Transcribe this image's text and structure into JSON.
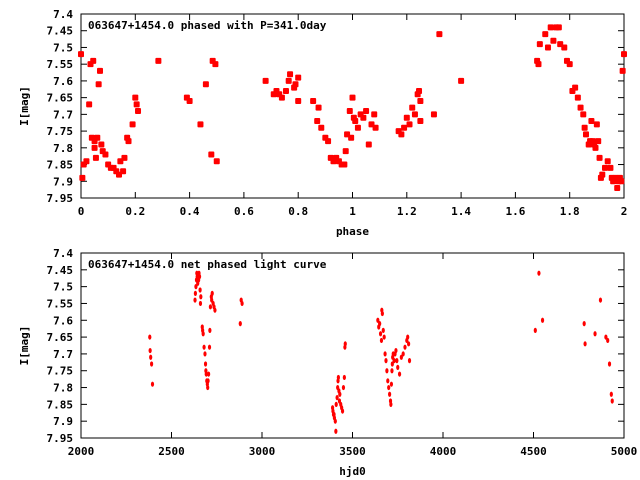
{
  "chart_data": [
    {
      "type": "scatter",
      "title": "063647+1454.0 phased with P=341.0day",
      "xlabel": "phase",
      "ylabel": "I[mag]",
      "xlim": [
        0,
        2
      ],
      "ylim": [
        7.95,
        7.4
      ],
      "y_inverted": true,
      "grid": false,
      "marker_color": "#ff0000",
      "xticks": [
        0,
        0.2,
        0.4,
        0.6,
        0.8,
        1,
        1.2,
        1.4,
        1.6,
        1.8,
        2
      ],
      "xtick_labels": [
        "0",
        "0.2",
        "0.4",
        "0.6",
        "0.8",
        "1",
        "1.2",
        "1.4",
        "1.6",
        "1.8",
        "2"
      ],
      "yticks": [
        7.4,
        7.45,
        7.5,
        7.55,
        7.6,
        7.65,
        7.7,
        7.75,
        7.8,
        7.85,
        7.9,
        7.95
      ],
      "ytick_labels": [
        "7.4",
        "7.45",
        "7.5",
        "7.55",
        "7.6",
        "7.65",
        "7.7",
        "7.75",
        "7.8",
        "7.85",
        "7.9",
        "7.95"
      ],
      "points": [
        [
          0.0,
          7.52
        ],
        [
          0.005,
          7.89
        ],
        [
          0.01,
          7.85
        ],
        [
          0.02,
          7.84
        ],
        [
          0.03,
          7.67
        ],
        [
          0.035,
          7.55
        ],
        [
          0.04,
          7.77
        ],
        [
          0.045,
          7.54
        ],
        [
          0.05,
          7.78
        ],
        [
          0.05,
          7.8
        ],
        [
          0.055,
          7.83
        ],
        [
          0.06,
          7.77
        ],
        [
          0.065,
          7.61
        ],
        [
          0.07,
          7.57
        ],
        [
          0.075,
          7.79
        ],
        [
          0.08,
          7.81
        ],
        [
          0.09,
          7.82
        ],
        [
          0.1,
          7.85
        ],
        [
          0.11,
          7.86
        ],
        [
          0.12,
          7.86
        ],
        [
          0.13,
          7.87
        ],
        [
          0.14,
          7.88
        ],
        [
          0.145,
          7.84
        ],
        [
          0.155,
          7.87
        ],
        [
          0.16,
          7.83
        ],
        [
          0.17,
          7.77
        ],
        [
          0.175,
          7.78
        ],
        [
          0.19,
          7.73
        ],
        [
          0.2,
          7.65
        ],
        [
          0.205,
          7.67
        ],
        [
          0.21,
          7.69
        ],
        [
          0.285,
          7.54
        ],
        [
          0.39,
          7.65
        ],
        [
          0.4,
          7.66
        ],
        [
          0.44,
          7.73
        ],
        [
          0.46,
          7.61
        ],
        [
          0.48,
          7.82
        ],
        [
          0.485,
          7.54
        ],
        [
          0.495,
          7.55
        ],
        [
          0.5,
          7.84
        ],
        [
          0.68,
          7.6
        ],
        [
          0.71,
          7.64
        ],
        [
          0.72,
          7.63
        ],
        [
          0.73,
          7.64
        ],
        [
          0.74,
          7.65
        ],
        [
          0.755,
          7.63
        ],
        [
          0.765,
          7.6
        ],
        [
          0.77,
          7.58
        ],
        [
          0.785,
          7.62
        ],
        [
          0.79,
          7.61
        ],
        [
          0.8,
          7.59
        ],
        [
          0.8,
          7.66
        ],
        [
          0.855,
          7.66
        ],
        [
          0.87,
          7.72
        ],
        [
          0.875,
          7.68
        ],
        [
          0.885,
          7.74
        ],
        [
          0.9,
          7.77
        ],
        [
          0.91,
          7.78
        ],
        [
          0.92,
          7.83
        ],
        [
          0.93,
          7.84
        ],
        [
          0.94,
          7.83
        ],
        [
          0.95,
          7.84
        ],
        [
          0.96,
          7.85
        ],
        [
          0.97,
          7.85
        ],
        [
          0.975,
          7.81
        ],
        [
          0.98,
          7.76
        ],
        [
          0.99,
          7.69
        ],
        [
          0.995,
          7.77
        ],
        [
          1.0,
          7.65
        ],
        [
          1.005,
          7.71
        ],
        [
          1.01,
          7.72
        ],
        [
          1.02,
          7.74
        ],
        [
          1.03,
          7.7
        ],
        [
          1.04,
          7.71
        ],
        [
          1.05,
          7.69
        ],
        [
          1.06,
          7.79
        ],
        [
          1.07,
          7.73
        ],
        [
          1.08,
          7.7
        ],
        [
          1.085,
          7.74
        ],
        [
          1.17,
          7.75
        ],
        [
          1.18,
          7.76
        ],
        [
          1.19,
          7.74
        ],
        [
          1.2,
          7.71
        ],
        [
          1.21,
          7.73
        ],
        [
          1.22,
          7.68
        ],
        [
          1.23,
          7.7
        ],
        [
          1.24,
          7.64
        ],
        [
          1.245,
          7.63
        ],
        [
          1.25,
          7.66
        ],
        [
          1.25,
          7.72
        ],
        [
          1.3,
          7.7
        ],
        [
          1.32,
          7.46
        ],
        [
          1.4,
          7.6
        ],
        [
          1.68,
          7.54
        ],
        [
          1.685,
          7.55
        ],
        [
          1.69,
          7.49
        ],
        [
          1.71,
          7.46
        ],
        [
          1.72,
          7.5
        ],
        [
          1.73,
          7.44
        ],
        [
          1.74,
          7.48
        ],
        [
          1.75,
          7.44
        ],
        [
          1.76,
          7.44
        ],
        [
          1.765,
          7.49
        ],
        [
          1.78,
          7.5
        ],
        [
          1.79,
          7.54
        ],
        [
          1.8,
          7.55
        ],
        [
          1.81,
          7.63
        ],
        [
          1.82,
          7.62
        ],
        [
          1.83,
          7.65
        ],
        [
          1.84,
          7.68
        ],
        [
          1.85,
          7.7
        ],
        [
          1.855,
          7.74
        ],
        [
          1.86,
          7.76
        ],
        [
          1.87,
          7.79
        ],
        [
          1.875,
          7.78
        ],
        [
          1.88,
          7.72
        ],
        [
          1.885,
          7.78
        ],
        [
          1.89,
          7.79
        ],
        [
          1.895,
          7.8
        ],
        [
          1.9,
          7.73
        ],
        [
          1.905,
          7.78
        ],
        [
          1.91,
          7.83
        ],
        [
          1.915,
          7.89
        ],
        [
          1.92,
          7.88
        ],
        [
          1.93,
          7.86
        ],
        [
          1.94,
          7.84
        ],
        [
          1.95,
          7.86
        ],
        [
          1.955,
          7.89
        ],
        [
          1.96,
          7.9
        ],
        [
          1.97,
          7.89
        ],
        [
          1.975,
          7.92
        ],
        [
          1.98,
          7.9
        ],
        [
          1.985,
          7.89
        ],
        [
          1.99,
          7.9
        ],
        [
          1.995,
          7.57
        ],
        [
          2.0,
          7.52
        ]
      ]
    },
    {
      "type": "scatter",
      "title": "063647+1454.0 net phased light curve",
      "xlabel": "hjd0",
      "ylabel": "I[mag]",
      "xlim": [
        2000,
        5000
      ],
      "ylim": [
        7.95,
        7.4
      ],
      "y_inverted": true,
      "grid": false,
      "marker_color": "#ff0000",
      "xticks": [
        2000,
        2500,
        3000,
        3500,
        4000,
        4500,
        5000
      ],
      "xtick_labels": [
        "2000",
        "2500",
        "3000",
        "3500",
        "4000",
        "4500",
        "5000"
      ],
      "yticks": [
        7.4,
        7.45,
        7.5,
        7.55,
        7.6,
        7.65,
        7.7,
        7.75,
        7.8,
        7.85,
        7.9,
        7.95
      ],
      "ytick_labels": [
        "7.4",
        "7.45",
        "7.5",
        "7.55",
        "7.6",
        "7.65",
        "7.7",
        "7.75",
        "7.8",
        "7.85",
        "7.9",
        "7.95"
      ],
      "points": [
        [
          2380,
          7.65
        ],
        [
          2382,
          7.69
        ],
        [
          2385,
          7.71
        ],
        [
          2390,
          7.73
        ],
        [
          2395,
          7.79
        ],
        [
          2630,
          7.54
        ],
        [
          2632,
          7.52
        ],
        [
          2635,
          7.5
        ],
        [
          2638,
          7.48
        ],
        [
          2640,
          7.46
        ],
        [
          2642,
          7.47
        ],
        [
          2645,
          7.49
        ],
        [
          2650,
          7.48
        ],
        [
          2652,
          7.46
        ],
        [
          2655,
          7.47
        ],
        [
          2658,
          7.51
        ],
        [
          2660,
          7.55
        ],
        [
          2662,
          7.53
        ],
        [
          2670,
          7.62
        ],
        [
          2672,
          7.63
        ],
        [
          2675,
          7.64
        ],
        [
          2680,
          7.68
        ],
        [
          2685,
          7.7
        ],
        [
          2688,
          7.73
        ],
        [
          2690,
          7.75
        ],
        [
          2692,
          7.76
        ],
        [
          2695,
          7.78
        ],
        [
          2698,
          7.79
        ],
        [
          2700,
          7.8
        ],
        [
          2702,
          7.78
        ],
        [
          2705,
          7.76
        ],
        [
          2710,
          7.68
        ],
        [
          2712,
          7.63
        ],
        [
          2715,
          7.56
        ],
        [
          2720,
          7.53
        ],
        [
          2722,
          7.54
        ],
        [
          2725,
          7.52
        ],
        [
          2730,
          7.55
        ],
        [
          2735,
          7.56
        ],
        [
          2740,
          7.57
        ],
        [
          2880,
          7.61
        ],
        [
          2885,
          7.54
        ],
        [
          2890,
          7.55
        ],
        [
          3390,
          7.86
        ],
        [
          3392,
          7.87
        ],
        [
          3395,
          7.88
        ],
        [
          3398,
          7.88
        ],
        [
          3400,
          7.89
        ],
        [
          3405,
          7.9
        ],
        [
          3408,
          7.93
        ],
        [
          3410,
          7.85
        ],
        [
          3415,
          7.83
        ],
        [
          3418,
          7.8
        ],
        [
          3420,
          7.78
        ],
        [
          3422,
          7.77
        ],
        [
          3425,
          7.81
        ],
        [
          3428,
          7.84
        ],
        [
          3430,
          7.82
        ],
        [
          3435,
          7.85
        ],
        [
          3440,
          7.86
        ],
        [
          3445,
          7.87
        ],
        [
          3450,
          7.8
        ],
        [
          3455,
          7.77
        ],
        [
          3458,
          7.68
        ],
        [
          3460,
          7.67
        ],
        [
          3640,
          7.6
        ],
        [
          3645,
          7.62
        ],
        [
          3650,
          7.61
        ],
        [
          3655,
          7.64
        ],
        [
          3660,
          7.66
        ],
        [
          3662,
          7.57
        ],
        [
          3665,
          7.58
        ],
        [
          3670,
          7.63
        ],
        [
          3675,
          7.65
        ],
        [
          3680,
          7.7
        ],
        [
          3685,
          7.72
        ],
        [
          3690,
          7.75
        ],
        [
          3695,
          7.78
        ],
        [
          3700,
          7.8
        ],
        [
          3705,
          7.82
        ],
        [
          3710,
          7.84
        ],
        [
          3712,
          7.85
        ],
        [
          3715,
          7.79
        ],
        [
          3718,
          7.75
        ],
        [
          3720,
          7.73
        ],
        [
          3722,
          7.71
        ],
        [
          3725,
          7.7
        ],
        [
          3730,
          7.72
        ],
        [
          3735,
          7.7
        ],
        [
          3740,
          7.69
        ],
        [
          3745,
          7.72
        ],
        [
          3750,
          7.74
        ],
        [
          3760,
          7.76
        ],
        [
          3770,
          7.71
        ],
        [
          3780,
          7.7
        ],
        [
          3790,
          7.68
        ],
        [
          3800,
          7.66
        ],
        [
          3805,
          7.65
        ],
        [
          3810,
          7.67
        ],
        [
          3815,
          7.72
        ],
        [
          4510,
          7.63
        ],
        [
          4530,
          7.46
        ],
        [
          4550,
          7.6
        ],
        [
          4780,
          7.61
        ],
        [
          4785,
          7.67
        ],
        [
          4840,
          7.64
        ],
        [
          4870,
          7.54
        ],
        [
          4900,
          7.65
        ],
        [
          4910,
          7.66
        ],
        [
          4920,
          7.73
        ],
        [
          4930,
          7.82
        ],
        [
          4935,
          7.84
        ]
      ]
    }
  ]
}
